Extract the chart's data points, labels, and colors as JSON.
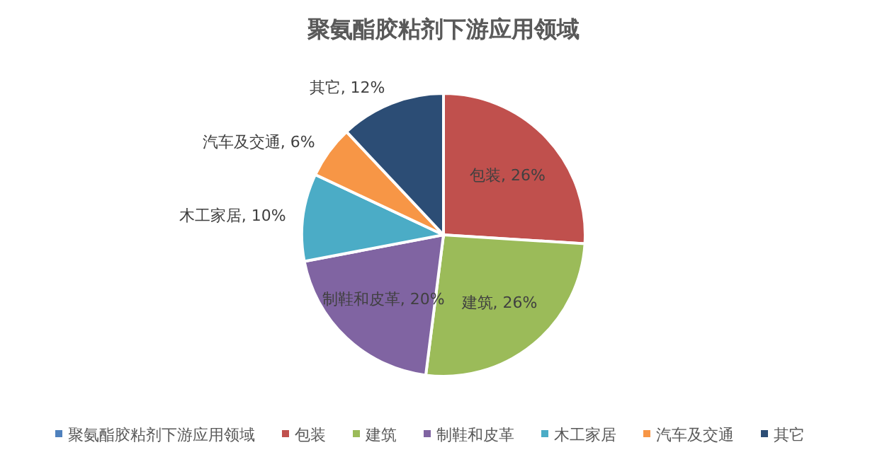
{
  "chart_data": {
    "type": "pie",
    "title": "聚氨酯胶粘剂下游应用领域",
    "legend_title": "聚氨酯胶粘剂下游应用领域",
    "categories": [
      "包装",
      "建筑",
      "制鞋和皮革",
      "木工家居",
      "汽车及交通",
      "其它"
    ],
    "values": [
      26,
      26,
      20,
      10,
      6,
      12
    ],
    "colors": [
      "#c0504d",
      "#9bbb59",
      "#8064a2",
      "#4bacc6",
      "#f79646",
      "#2c4d75"
    ],
    "value_labels": [
      "包装, 26%",
      "建筑, 26%",
      "制鞋和皮革, 20%",
      "木工家居, 10%",
      "汽车及交通, 6%",
      "其它, 12%"
    ],
    "legend": "bottom"
  }
}
